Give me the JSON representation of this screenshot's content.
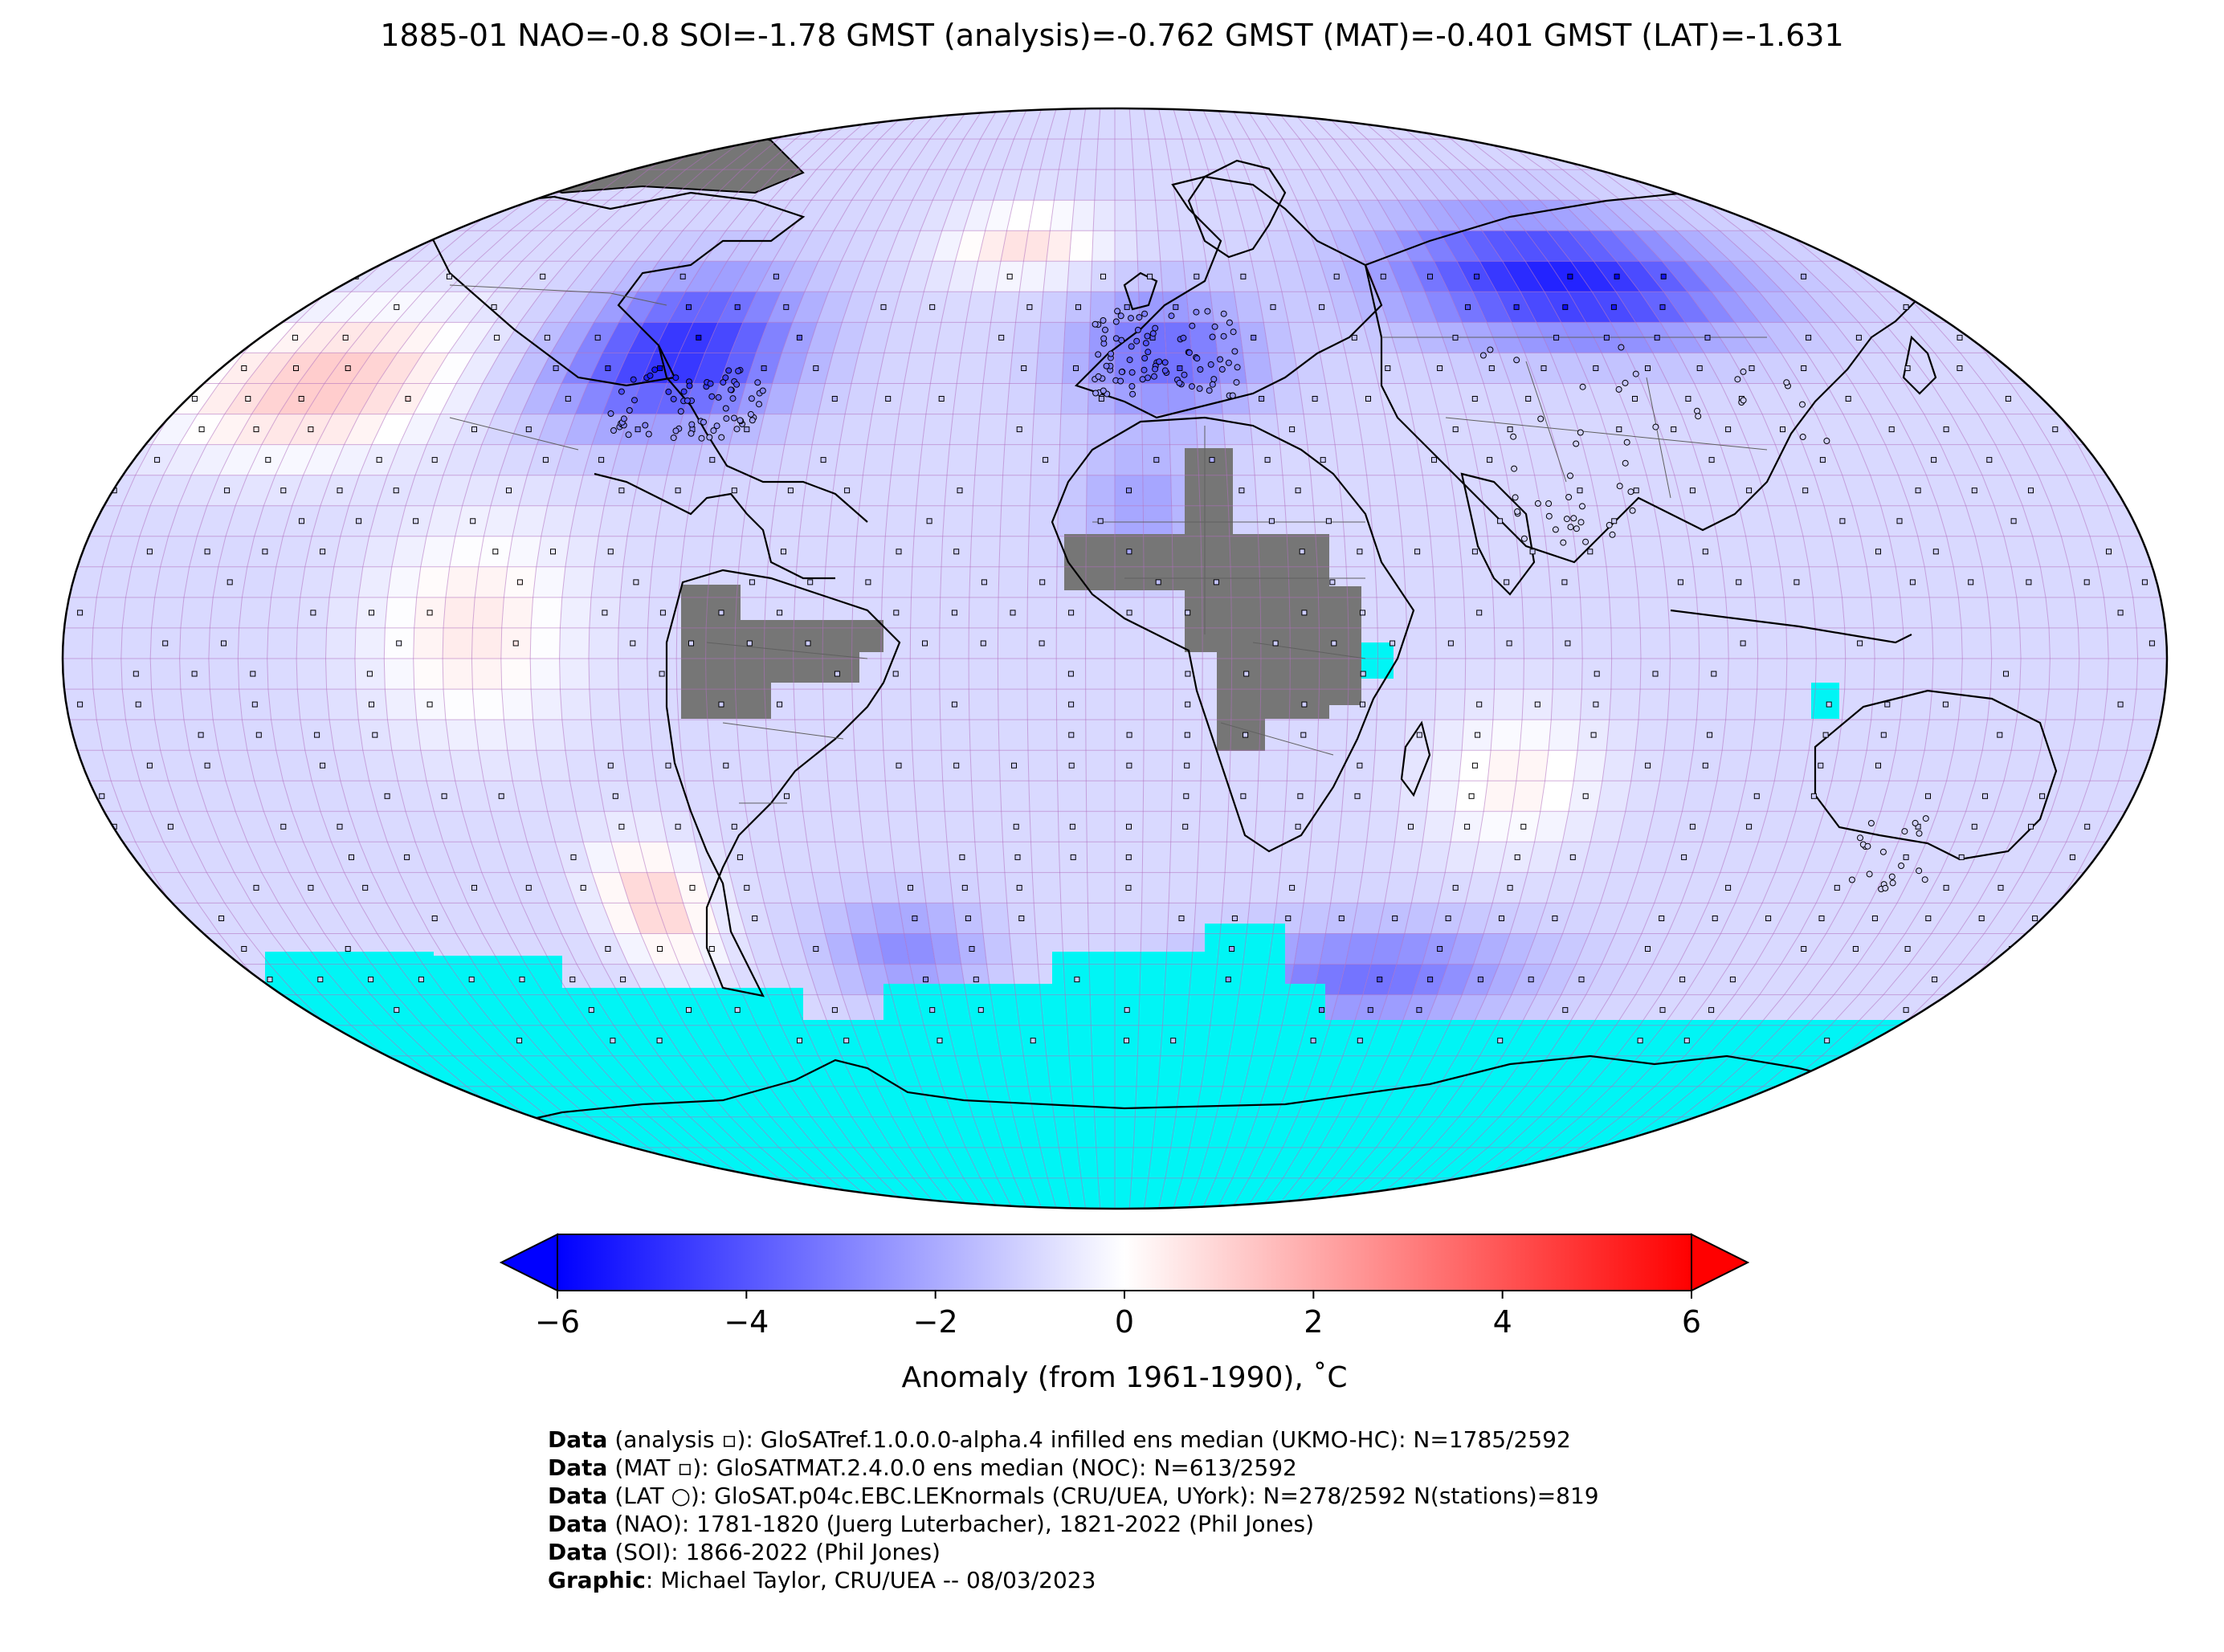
{
  "title": "1885-01 NAO=-0.8 SOI=-1.78 GMST (analysis)=-0.762 GMST (MAT)=-0.401 GMST (LAT)=-1.631",
  "map": {
    "projection": "Robinson",
    "grid": "5x5 degree",
    "colors": {
      "ocean_missing": "#00f5f5",
      "land_missing": "#767676",
      "coast": "#000000",
      "gridline": "#b06fc0"
    }
  },
  "colorbar": {
    "ticks": [
      "−6",
      "−4",
      "−2",
      "0",
      "2",
      "4",
      "6"
    ],
    "tick_values": [
      -6,
      -4,
      -2,
      0,
      2,
      4,
      6
    ],
    "range": [
      -6,
      6
    ],
    "extend": "both",
    "colors": {
      "cold": "#0000ff",
      "neutral": "#ffffff",
      "warm": "#ff0000"
    },
    "label": "Anomaly (from 1961-1990), ˚C"
  },
  "credits": [
    {
      "key": "Data",
      "text": " (analysis ▫): GloSATref.1.0.0.0-alpha.4 infilled ens median (UKMO-HC): N=1785/2592"
    },
    {
      "key": "Data",
      "text": " (MAT ▫): GloSATMAT.2.4.0.0 ens median (NOC): N=613/2592"
    },
    {
      "key": "Data",
      "text": " (LAT ○): GloSAT.p04c.EBC.LEKnormals (CRU/UEA, UYork): N=278/2592 N(stations)=819"
    },
    {
      "key": "Data",
      "text": " (NAO): 1781-1820 (Juerg Luterbacher), 1821-2022 (Phil Jones)"
    },
    {
      "key": "Data",
      "text": " (SOI): 1866-2022 (Phil Jones)"
    },
    {
      "key": "Graphic",
      "text": ": Michael Taylor, CRU/UEA -- 08/03/2023"
    }
  ]
}
